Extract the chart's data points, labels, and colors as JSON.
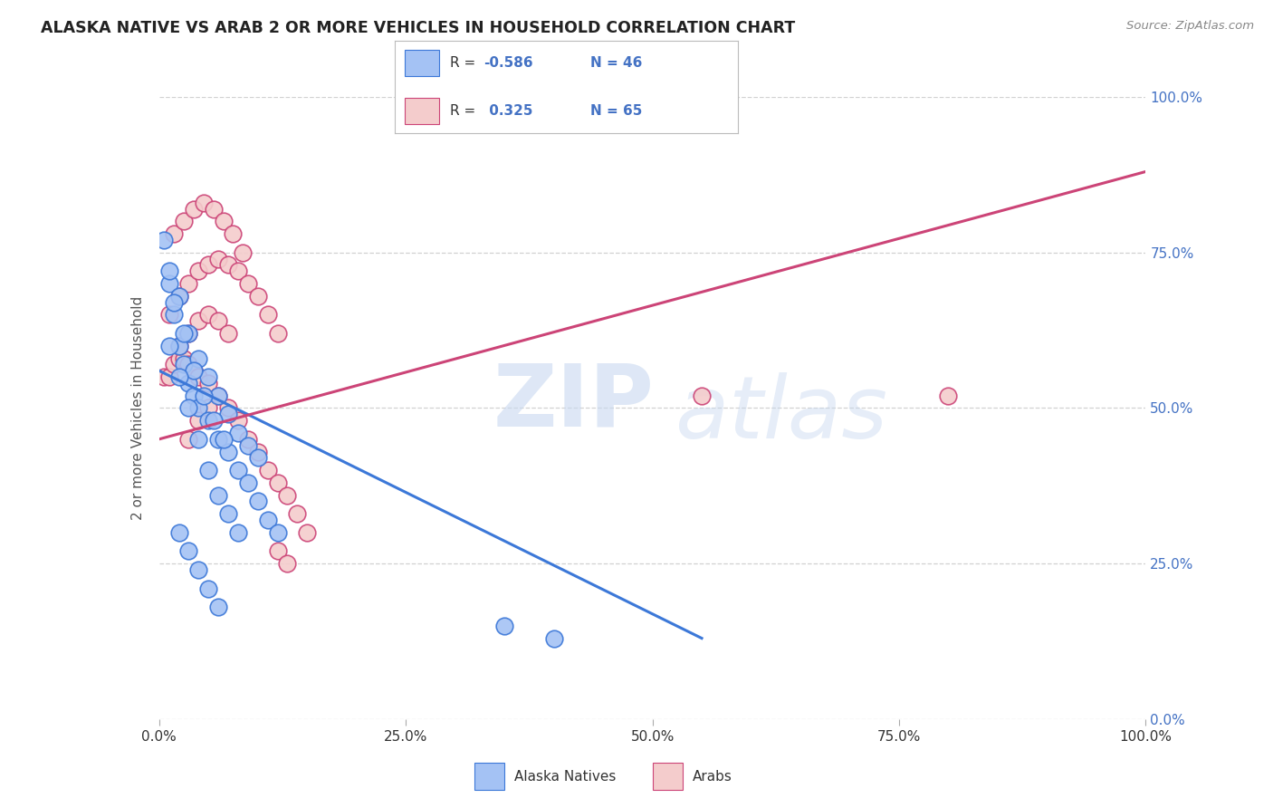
{
  "title": "ALASKA NATIVE VS ARAB 2 OR MORE VEHICLES IN HOUSEHOLD CORRELATION CHART",
  "source": "Source: ZipAtlas.com",
  "ylabel": "2 or more Vehicles in Household",
  "legend_label1": "Alaska Natives",
  "legend_label2": "Arabs",
  "blue_color": "#a4c2f4",
  "pink_color": "#f4cccc",
  "blue_line_color": "#3c78d8",
  "pink_line_color": "#cc4477",
  "alaska_x": [
    0.5,
    1.0,
    1.5,
    2.0,
    2.5,
    3.0,
    3.5,
    4.0,
    5.0,
    6.0,
    7.0,
    8.0,
    9.0,
    10.0,
    11.0,
    12.0,
    1.0,
    2.0,
    3.0,
    4.0,
    5.0,
    6.0,
    7.0,
    8.0,
    9.0,
    10.0,
    1.5,
    2.5,
    3.5,
    4.5,
    5.5,
    6.5,
    1.0,
    2.0,
    3.0,
    4.0,
    5.0,
    6.0,
    7.0,
    8.0,
    2.0,
    3.0,
    4.0,
    5.0,
    6.0,
    35.0,
    40.0
  ],
  "alaska_y": [
    77.0,
    70.0,
    65.0,
    60.0,
    57.0,
    54.0,
    52.0,
    50.0,
    48.0,
    45.0,
    43.0,
    40.0,
    38.0,
    35.0,
    32.0,
    30.0,
    72.0,
    68.0,
    62.0,
    58.0,
    55.0,
    52.0,
    49.0,
    46.0,
    44.0,
    42.0,
    67.0,
    62.0,
    56.0,
    52.0,
    48.0,
    45.0,
    60.0,
    55.0,
    50.0,
    45.0,
    40.0,
    36.0,
    33.0,
    30.0,
    30.0,
    27.0,
    24.0,
    21.0,
    18.0,
    15.0,
    13.0
  ],
  "arab_x": [
    0.5,
    1.0,
    1.5,
    2.0,
    2.5,
    3.0,
    3.5,
    4.0,
    5.0,
    6.0,
    7.0,
    8.0,
    9.0,
    10.0,
    11.0,
    12.0,
    13.0,
    14.0,
    15.0,
    1.0,
    2.0,
    3.0,
    4.0,
    5.0,
    6.0,
    7.0,
    8.0,
    9.0,
    10.0,
    11.0,
    12.0,
    1.5,
    2.5,
    3.5,
    4.5,
    5.5,
    6.5,
    7.5,
    8.5,
    2.0,
    3.0,
    4.0,
    5.0,
    6.0,
    7.0,
    3.0,
    4.0,
    5.0,
    12.0,
    13.0,
    80.0,
    55.0
  ],
  "arab_y": [
    55.0,
    55.0,
    57.0,
    58.0,
    58.0,
    57.0,
    56.0,
    55.0,
    54.0,
    52.0,
    50.0,
    48.0,
    45.0,
    43.0,
    40.0,
    38.0,
    36.0,
    33.0,
    30.0,
    65.0,
    68.0,
    70.0,
    72.0,
    73.0,
    74.0,
    73.0,
    72.0,
    70.0,
    68.0,
    65.0,
    62.0,
    78.0,
    80.0,
    82.0,
    83.0,
    82.0,
    80.0,
    78.0,
    75.0,
    60.0,
    62.0,
    64.0,
    65.0,
    64.0,
    62.0,
    45.0,
    48.0,
    50.0,
    27.0,
    25.0,
    52.0,
    52.0
  ],
  "alaska_trend_x": [
    0,
    55
  ],
  "alaska_trend_y": [
    56,
    13
  ],
  "arab_trend_x": [
    0,
    100
  ],
  "arab_trend_y": [
    45,
    88
  ],
  "xlim": [
    0,
    100
  ],
  "ylim": [
    0,
    100
  ]
}
